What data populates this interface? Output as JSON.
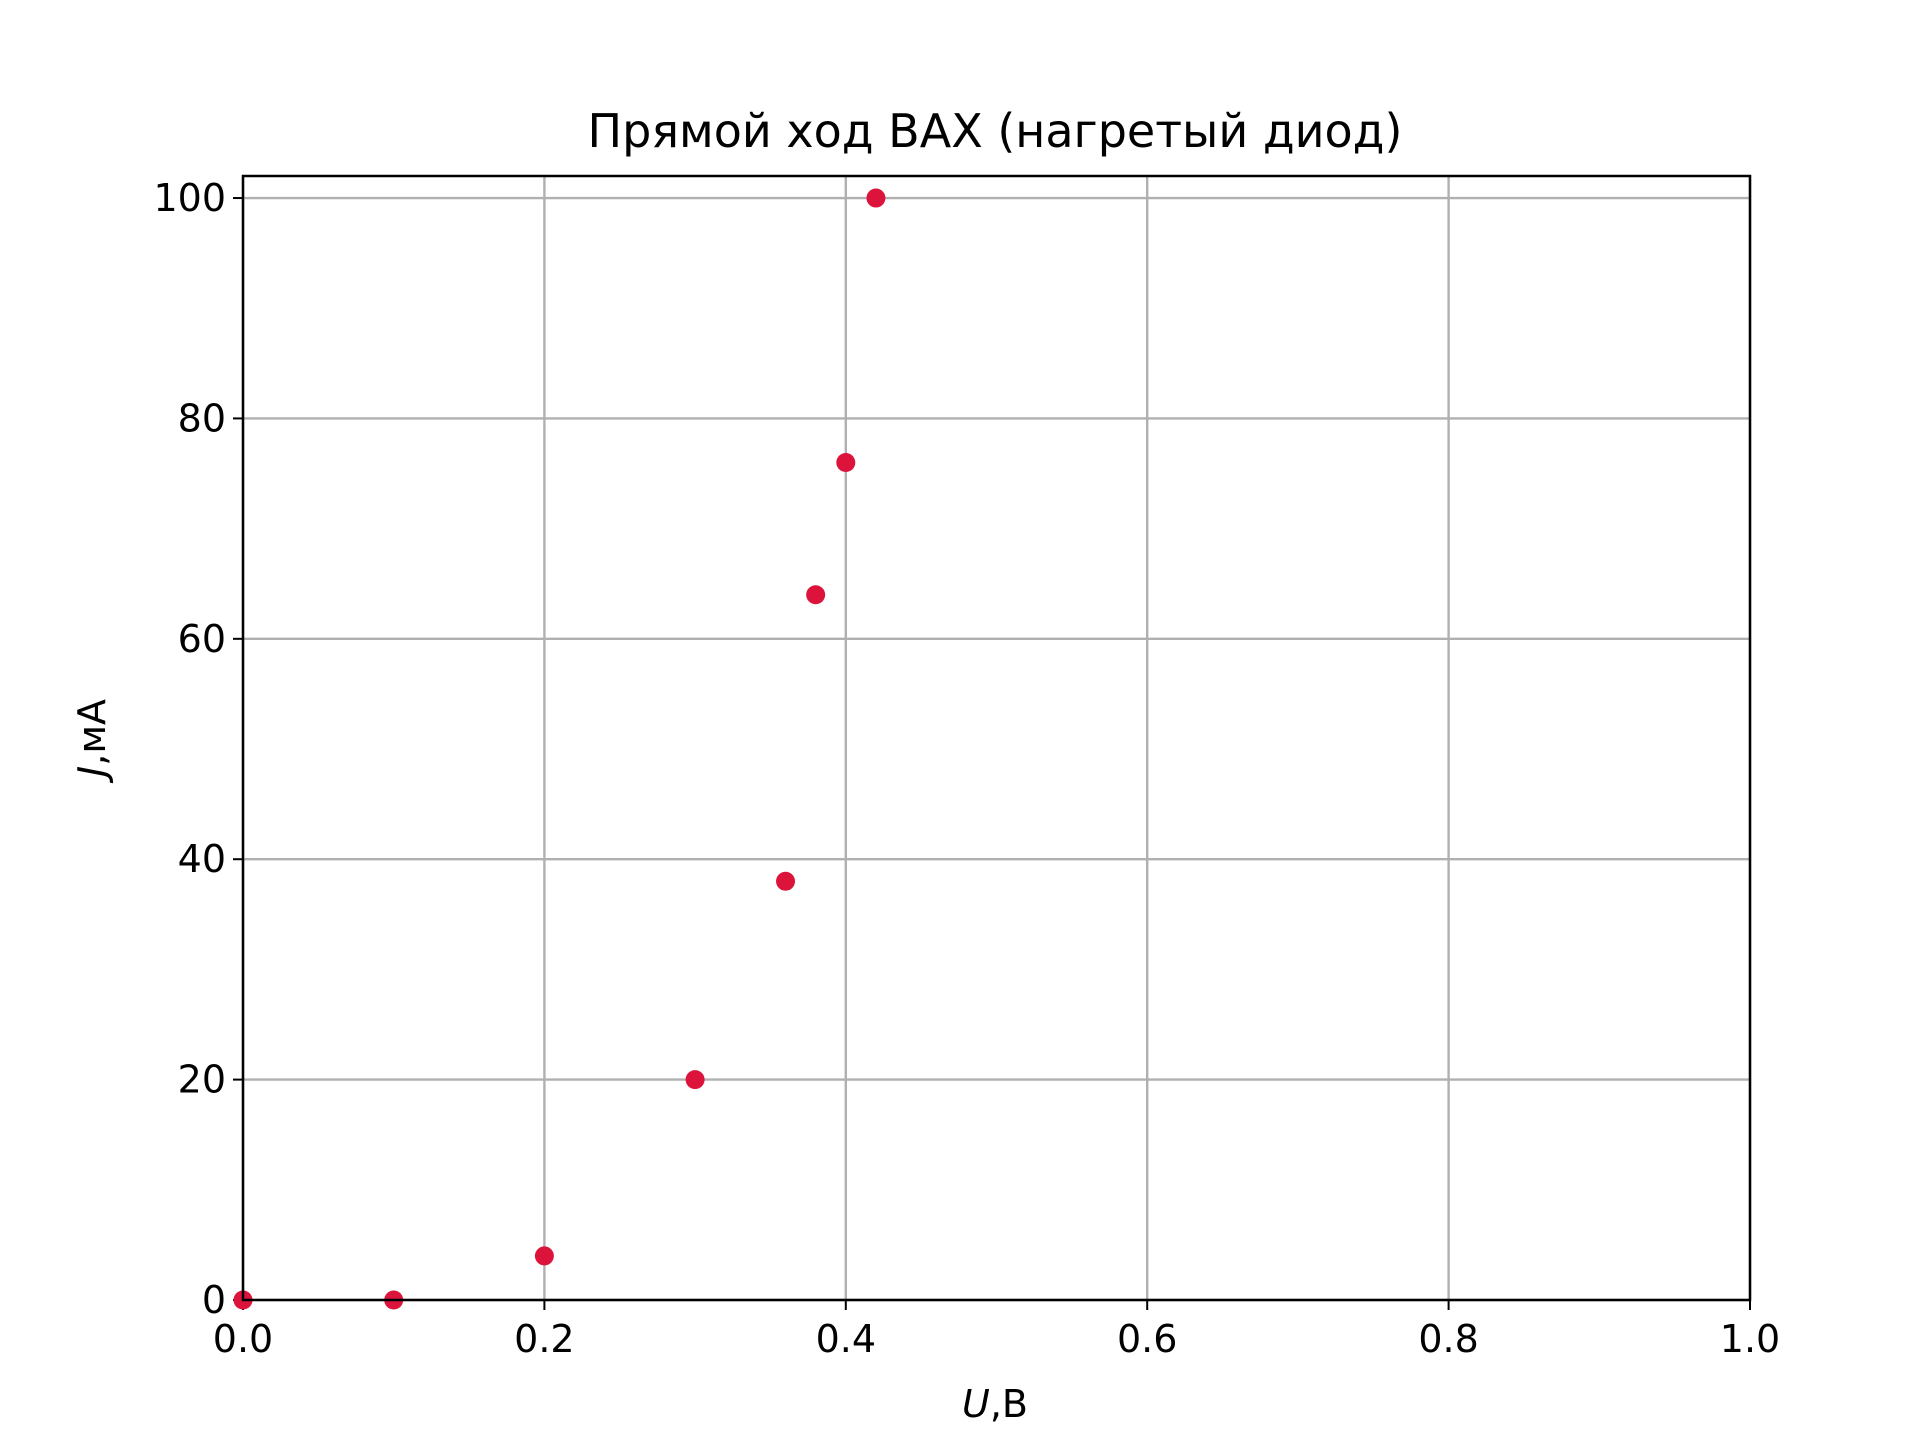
{
  "chart_data": {
    "type": "scatter",
    "title": "Прямой ход ВАХ (нагретый диод)",
    "xlabel": {
      "symbol": "U",
      "unit": ",В"
    },
    "ylabel": {
      "symbol": "J",
      "unit": ",мА"
    },
    "xlim": [
      0.0,
      1.0
    ],
    "ylim": [
      0,
      102
    ],
    "xticks": [
      0.0,
      0.2,
      0.4,
      0.6,
      0.8,
      1.0
    ],
    "xtick_labels": [
      "0.0",
      "0.2",
      "0.4",
      "0.6",
      "0.8",
      "1.0"
    ],
    "yticks": [
      0,
      20,
      40,
      60,
      80,
      100
    ],
    "ytick_labels": [
      "0",
      "20",
      "40",
      "60",
      "80",
      "100"
    ],
    "grid": true,
    "marker_color": "#dc143c",
    "series": [
      {
        "x": [
          0.0,
          0.1,
          0.2,
          0.3,
          0.36,
          0.38,
          0.4,
          0.42
        ],
        "y": [
          0,
          0,
          4,
          20,
          38,
          64,
          76,
          100
        ]
      }
    ]
  }
}
